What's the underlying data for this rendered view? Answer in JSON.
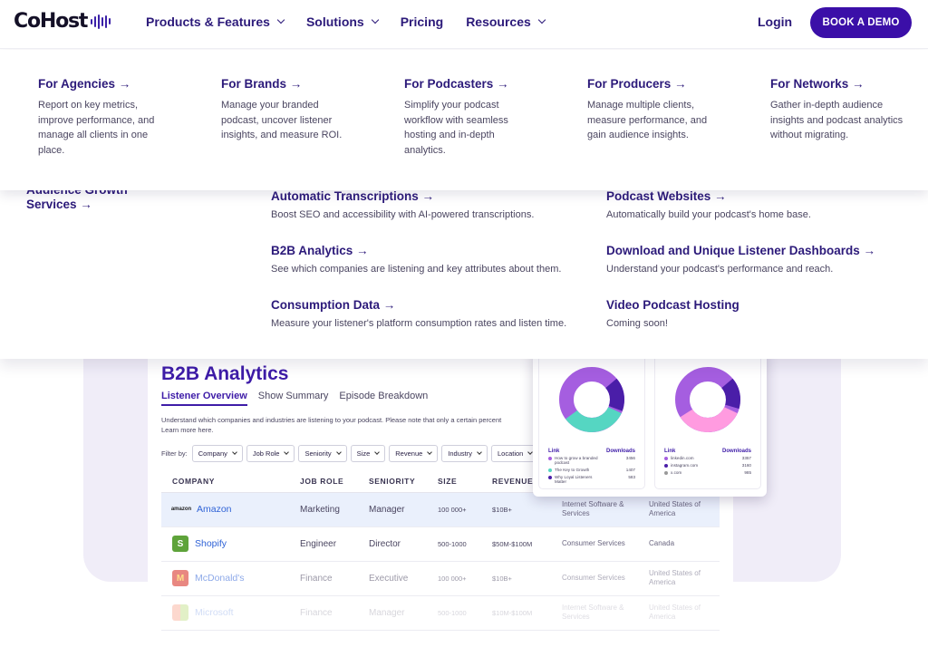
{
  "brand": {
    "name": "CoHost",
    "accent": "#3b0fa8"
  },
  "nav": {
    "items": [
      {
        "label": "Products & Features",
        "has_dropdown": true
      },
      {
        "label": "Solutions",
        "has_dropdown": true
      },
      {
        "label": "Pricing",
        "has_dropdown": false
      },
      {
        "label": "Resources",
        "has_dropdown": true
      }
    ],
    "login": "Login",
    "demo": "BOOK A DEMO"
  },
  "audiences": [
    {
      "title": "For Agencies →",
      "desc": "Report on key metrics, improve performance, and manage all clients in one place."
    },
    {
      "title": "For Brands →",
      "desc": "Manage your branded podcast, uncover listener insights, and measure ROI."
    },
    {
      "title": "For Podcasters →",
      "desc": "Simplify your podcast workflow with seamless hosting and in-depth analytics."
    },
    {
      "title": "For Producers →",
      "desc": "Manage multiple clients, measure performance, and gain audience insights."
    },
    {
      "title": "For Networks →",
      "desc": "Gather in-depth audience insights and podcast analytics without migrating."
    }
  ],
  "partial_item": "Audience Growth Services →",
  "features": [
    {
      "title": "Automatic Transcriptions →",
      "desc": "Boost SEO and accessibility with AI-powered transcriptions."
    },
    {
      "title": "Podcast Websites →",
      "desc": "Automatically build your podcast's home base."
    },
    {
      "title": "B2B Analytics →",
      "desc": "See which companies are listening and key attributes about them."
    },
    {
      "title": "Download and Unique Listener Dashboards →",
      "desc": "Understand your podcast's performance and reach."
    },
    {
      "title": "Consumption Data →",
      "desc": "Measure your listener's platform consumption rates and listen time."
    },
    {
      "title": "Video Podcast Hosting",
      "desc": "Coming soon!"
    }
  ],
  "b2b": {
    "title": "B2B Analytics",
    "tabs": [
      "Listener Overview",
      "Show Summary",
      "Episode Breakdown"
    ],
    "description": "Understand which companies and industries are listening to your podcast. Please note that only a certain percent",
    "learn_more": "Learn more here.",
    "filter_label": "Filter by:",
    "filters": [
      "Company",
      "Job Role",
      "Seniority",
      "Size",
      "Revenue",
      "Industry",
      "Location"
    ],
    "columns": [
      "COMPANY",
      "JOB ROLE",
      "SENIORITY",
      "SIZE",
      "REVENUE",
      "",
      ""
    ],
    "rows": [
      {
        "company": "Amazon",
        "logo": "amazon",
        "role": "Marketing",
        "seniority": "Manager",
        "size": "100 000+",
        "revenue": "$10B+",
        "industry": "Internet Software & Services",
        "location": "United States of America"
      },
      {
        "company": "Shopify",
        "logo": "S",
        "role": "Engineer",
        "seniority": "Director",
        "size": "500-1000",
        "revenue": "$50M-$100M",
        "industry": "Consumer Services",
        "location": "Canada"
      },
      {
        "company": "McDonald's",
        "logo": "M",
        "role": "Finance",
        "seniority": "Executive",
        "size": "100 000+",
        "revenue": "$10B+",
        "industry": "Consumer Services",
        "location": "United States of America"
      },
      {
        "company": "Microsoft",
        "logo": "ms",
        "role": "Finance",
        "seniority": "Manager",
        "size": "500-1000",
        "revenue": "$10M-$100M",
        "industry": "Internet Software & Services",
        "location": "United States of America"
      }
    ]
  },
  "donuts": [
    {
      "header_left": "Link",
      "header_right": "Downloads",
      "rows": [
        {
          "label": "How to grow a branded podcast",
          "value": "3456",
          "color": "#a55ee0"
        },
        {
          "label": "The Key to Growth",
          "value": "1407",
          "color": "#55d6c2"
        },
        {
          "label": "Why Loyal Listeners Matter",
          "value": "583",
          "color": "#4a1ea8"
        }
      ]
    },
    {
      "header_left": "Link",
      "header_right": "Downloads",
      "rows": [
        {
          "label": "linkedin.com",
          "value": "3357",
          "color": "#a55ee0"
        },
        {
          "label": "instagram.com",
          "value": "3160",
          "color": "#4a1ea8"
        },
        {
          "label": "x.com",
          "value": "985",
          "color": "#999999"
        }
      ]
    }
  ]
}
